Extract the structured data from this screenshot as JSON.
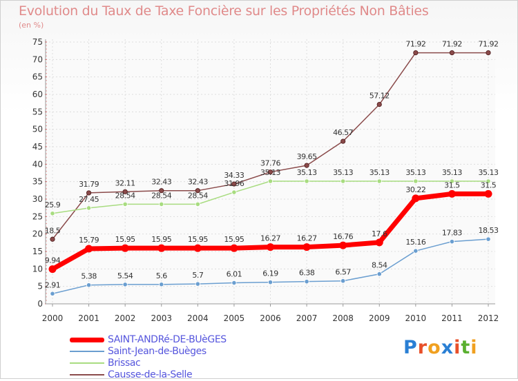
{
  "title": "Evolution du Taux de Taxe Foncière sur les Propriétés Non Bâties",
  "unit_label": "(en %)",
  "logo": {
    "text": "Proxiti",
    "letter_colors": [
      "#2a7fd4",
      "#e8502a",
      "#f0a020",
      "#2a7fd4",
      "#e8502a",
      "#5ab030",
      "#f0a020"
    ]
  },
  "chart_data": {
    "type": "line",
    "title": "Evolution du Taux de Taxe Foncière sur les Propriétés Non Bâties",
    "ylabel": "(en %)",
    "xlabel": "",
    "x": [
      "2000",
      "2001",
      "2002",
      "2003",
      "2004",
      "2005",
      "2006",
      "2007",
      "2008",
      "2009",
      "2010",
      "2011",
      "2012"
    ],
    "ylim": [
      0,
      75
    ],
    "yticks": [
      0,
      5,
      10,
      15,
      20,
      25,
      30,
      35,
      40,
      45,
      50,
      55,
      60,
      65,
      70,
      75
    ],
    "grid": true,
    "legend_position": "bottom-left",
    "series": [
      {
        "name": "SAINT-ANDRé-DE-BUèGES",
        "color": "#ff0000",
        "values": [
          9.94,
          15.79,
          15.95,
          15.95,
          15.95,
          15.95,
          16.27,
          16.27,
          16.76,
          17.6,
          30.22,
          31.5,
          31.5
        ],
        "labels": [
          "9.94",
          "15.79",
          "15.95",
          "15.95",
          "15.95",
          "15.95",
          "16.27",
          "16.27",
          "16.76",
          "17.6",
          "30.22",
          "31.5",
          "31.5"
        ]
      },
      {
        "name": "Saint-Jean-de-Buèges",
        "color": "#6a9ed0",
        "values": [
          2.91,
          5.38,
          5.54,
          5.56,
          5.7,
          6.01,
          6.19,
          6.38,
          6.57,
          8.54,
          15.16,
          17.83,
          18.53
        ],
        "labels": [
          "2.91",
          "5.38",
          "5.54",
          "5.6",
          "5.7",
          "6.01",
          "6.19",
          "6.38",
          "6.57",
          "8.54",
          "15.16",
          "17.83",
          "18.53"
        ]
      },
      {
        "name": "Brissac",
        "color": "#a8dc80",
        "values": [
          25.9,
          27.45,
          28.54,
          28.54,
          28.54,
          31.96,
          35.13,
          35.13,
          35.13,
          35.13,
          35.13,
          35.13,
          35.13
        ],
        "labels": [
          "25.9",
          "27.45",
          "28.54",
          "28.54",
          "28.54",
          "31.96",
          "35.13",
          "35.13",
          "35.13",
          "35.13",
          "35.13",
          "35.13",
          "35.13"
        ]
      },
      {
        "name": "Causse-de-la-Selle",
        "color": "#8a4a4a",
        "values": [
          18.5,
          31.79,
          32.11,
          32.43,
          32.43,
          34.33,
          37.76,
          39.65,
          46.57,
          57.12,
          71.92,
          71.92,
          71.92
        ],
        "labels": [
          "18.5",
          "31.79",
          "32.11",
          "32.43",
          "32.43",
          "34.33",
          "37.76",
          "39.65",
          "46.57",
          "57.12",
          "71.92",
          "71.92",
          "71.92"
        ]
      }
    ]
  }
}
